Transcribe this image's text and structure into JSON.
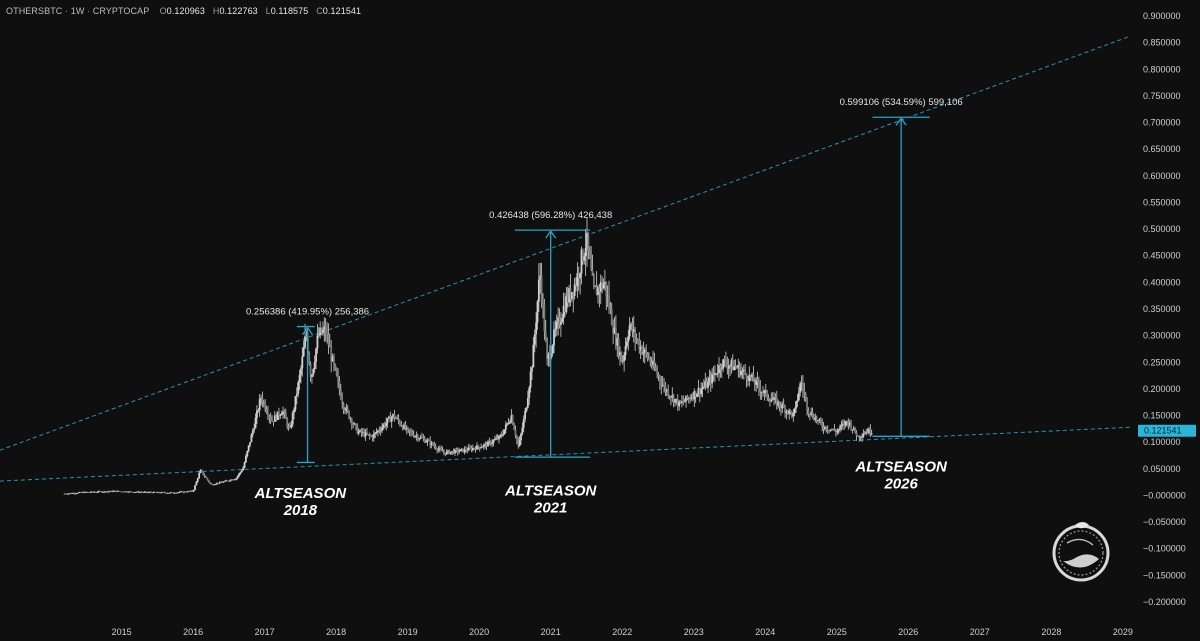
{
  "header": {
    "symbol": "OTHERSBTC",
    "timeframe": "1W",
    "source": "CRYPTOCAP",
    "open_label": "O",
    "open": "0.120963",
    "high_label": "H",
    "high": "0.122763",
    "low_label": "L",
    "low": "0.118575",
    "close_label": "C",
    "close": "0.121541"
  },
  "colors": {
    "background": "#0f0f0f",
    "candles": "#d0d0d0",
    "accent": "#2aa3c7",
    "price_badge": "#29b6d8"
  },
  "logo_icon": "ouroboros-serpent-icon",
  "chart_data": {
    "type": "candlestick",
    "title": "OTHERSBTC · 1W · CRYPTOCAP",
    "ylim": [
      -0.2,
      0.9
    ],
    "y_ticks": [
      "0.900000",
      "0.850000",
      "0.800000",
      "0.750000",
      "0.700000",
      "0.650000",
      "0.600000",
      "0.550000",
      "0.500000",
      "0.450000",
      "0.400000",
      "0.350000",
      "0.300000",
      "0.250000",
      "0.200000",
      "0.150000",
      "0.100000",
      "0.050000",
      "−0.000000",
      "−0.050000",
      "−0.100000",
      "−0.150000",
      "−0.200000"
    ],
    "y_tick_values": [
      0.9,
      0.85,
      0.8,
      0.75,
      0.7,
      0.65,
      0.6,
      0.55,
      0.5,
      0.45,
      0.4,
      0.35,
      0.3,
      0.25,
      0.2,
      0.15,
      0.1,
      0.05,
      0.0,
      -0.05,
      -0.1,
      -0.15,
      -0.2
    ],
    "x_ticks": [
      "2015",
      "2016",
      "2017",
      "2018",
      "2019",
      "2020",
      "2021",
      "2022",
      "2023",
      "2024",
      "2025",
      "2026",
      "2027",
      "2028",
      "2029"
    ],
    "x_tick_values": [
      2015,
      2016,
      2017,
      2018,
      2019,
      2020,
      2021,
      2022,
      2023,
      2024,
      2025,
      2026,
      2027,
      2028,
      2029
    ],
    "xlim": [
      2013.8,
      2029.6
    ],
    "current_price": "0.121541",
    "current_price_value": 0.121541,
    "series_path": [
      [
        2014.7,
        0.003
      ],
      [
        2015.0,
        0.006
      ],
      [
        2015.4,
        0.008
      ],
      [
        2015.8,
        0.006
      ],
      [
        2016.2,
        0.005
      ],
      [
        2016.5,
        0.008
      ],
      [
        2016.6,
        0.047
      ],
      [
        2016.75,
        0.02
      ],
      [
        2016.9,
        0.025
      ],
      [
        2017.1,
        0.032
      ],
      [
        2017.2,
        0.052
      ],
      [
        2017.35,
        0.13
      ],
      [
        2017.45,
        0.185
      ],
      [
        2017.6,
        0.14
      ],
      [
        2017.75,
        0.16
      ],
      [
        2017.85,
        0.12
      ],
      [
        2018.0,
        0.23
      ],
      [
        2018.08,
        0.305
      ],
      [
        2018.15,
        0.22
      ],
      [
        2018.25,
        0.3
      ],
      [
        2018.35,
        0.31
      ],
      [
        2018.45,
        0.25
      ],
      [
        2018.6,
        0.17
      ],
      [
        2018.8,
        0.12
      ],
      [
        2019.0,
        0.11
      ],
      [
        2019.3,
        0.15
      ],
      [
        2019.5,
        0.12
      ],
      [
        2019.8,
        0.1
      ],
      [
        2020.0,
        0.08
      ],
      [
        2020.3,
        0.085
      ],
      [
        2020.6,
        0.095
      ],
      [
        2020.8,
        0.11
      ],
      [
        2020.95,
        0.15
      ],
      [
        2021.05,
        0.09
      ],
      [
        2021.15,
        0.16
      ],
      [
        2021.25,
        0.26
      ],
      [
        2021.35,
        0.42
      ],
      [
        2021.45,
        0.25
      ],
      [
        2021.55,
        0.3
      ],
      [
        2021.7,
        0.36
      ],
      [
        2021.85,
        0.4
      ],
      [
        2022.0,
        0.48
      ],
      [
        2022.1,
        0.38
      ],
      [
        2022.25,
        0.4
      ],
      [
        2022.4,
        0.3
      ],
      [
        2022.5,
        0.25
      ],
      [
        2022.6,
        0.32
      ],
      [
        2022.75,
        0.28
      ],
      [
        2022.9,
        0.25
      ],
      [
        2023.1,
        0.2
      ],
      [
        2023.3,
        0.17
      ],
      [
        2023.5,
        0.19
      ],
      [
        2023.7,
        0.21
      ],
      [
        2023.9,
        0.25
      ],
      [
        2024.1,
        0.24
      ],
      [
        2024.3,
        0.22
      ],
      [
        2024.5,
        0.19
      ],
      [
        2024.7,
        0.17
      ],
      [
        2024.9,
        0.15
      ],
      [
        2025.0,
        0.215
      ],
      [
        2025.1,
        0.16
      ],
      [
        2025.3,
        0.13
      ],
      [
        2025.5,
        0.12
      ],
      [
        2025.65,
        0.14
      ],
      [
        2025.8,
        0.11
      ],
      [
        2025.9,
        0.12
      ],
      [
        2026.0,
        0.121541
      ]
    ],
    "trendlines": [
      {
        "name": "upper-resistance-line",
        "from": [
          2013.8,
          0.085
        ],
        "to": [
          2029.6,
          0.862
        ]
      },
      {
        "name": "lower-support-line",
        "from": [
          2013.8,
          0.027
        ],
        "to": [
          2029.6,
          0.128
        ]
      }
    ],
    "measurements": [
      {
        "name": "2018",
        "x": 2018.1,
        "from": 0.062,
        "to": 0.317,
        "x_range": [
          2017.95,
          2018.2
        ],
        "label": "0.256386 (419.95%) 256,386"
      },
      {
        "name": "2021",
        "x": 2021.5,
        "from": 0.072,
        "to": 0.498,
        "x_range": [
          2021.0,
          2022.05
        ],
        "label": "0.426438 (596.28%) 426,438"
      },
      {
        "name": "2026",
        "x": 2026.4,
        "from": 0.111,
        "to": 0.71,
        "x_range": [
          2026.0,
          2026.8
        ],
        "label": "0.599106 (534.59%) 599,106"
      }
    ],
    "annotations": [
      {
        "line1": "ALTSEASON",
        "line2": "2018",
        "x": 2018.0,
        "y": -0.005
      },
      {
        "line1": "ALTSEASON",
        "line2": "2021",
        "x": 2021.5,
        "y": 0.0
      },
      {
        "line1": "ALTSEASON",
        "line2": "2026",
        "x": 2026.4,
        "y": 0.045
      }
    ]
  }
}
